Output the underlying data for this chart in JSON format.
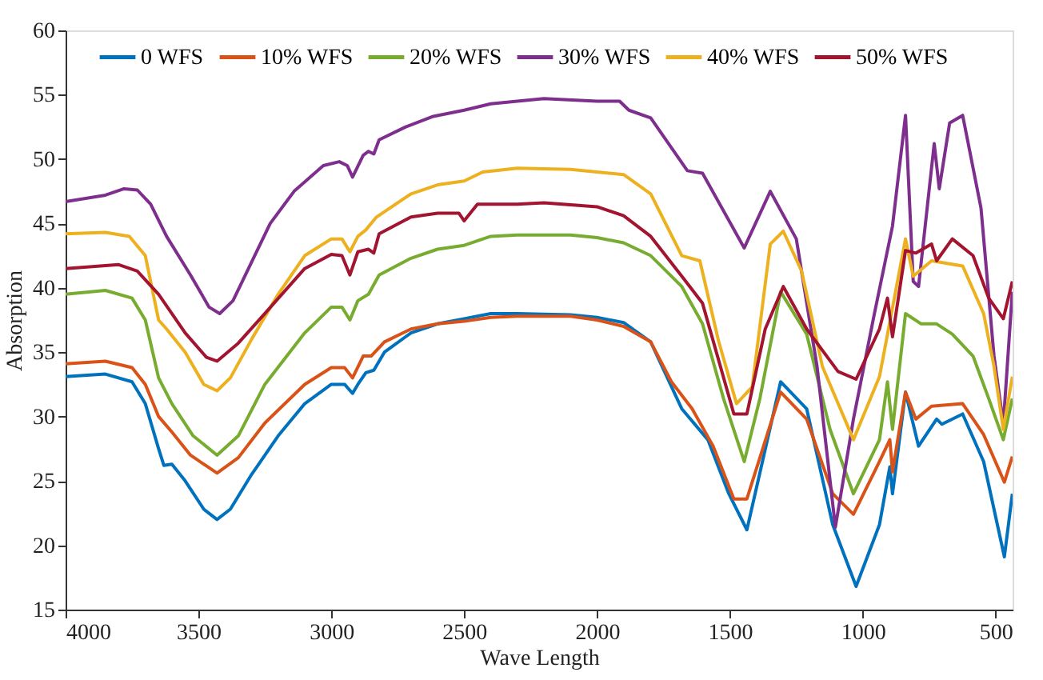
{
  "chart_data": {
    "type": "line",
    "xlabel": "Wave Length",
    "ylabel": "Absorption",
    "xlim": [
      4000,
      436
    ],
    "xticks": [
      4000,
      3500,
      3000,
      2500,
      2000,
      1500,
      1000,
      500
    ],
    "ylim": [
      15,
      60
    ],
    "yticks": [
      15,
      20,
      25,
      30,
      35,
      40,
      45,
      50,
      55,
      60
    ],
    "grid": false,
    "legend": "top",
    "marker": "none",
    "line_style": "solid",
    "series": [
      {
        "name": "0 WFS",
        "color": "#0072bd",
        "x": [
          4000,
          3850,
          3750,
          3700,
          3650,
          3630,
          3600,
          3550,
          3480,
          3430,
          3380,
          3300,
          3200,
          3100,
          3000,
          2950,
          2920,
          2900,
          2870,
          2840,
          2800,
          2700,
          2600,
          2500,
          2400,
          2300,
          2100,
          2000,
          1900,
          1798,
          1681,
          1583,
          1504,
          1436,
          1309,
          1211,
          1113,
          1025,
          937,
          898,
          888,
          839,
          790,
          722,
          702,
          624,
          545,
          467,
          437
        ],
        "values": [
          33.1,
          33.3,
          32.7,
          31,
          27.5,
          26.2,
          26.3,
          25,
          22.8,
          22,
          22.8,
          25.5,
          28.5,
          31,
          32.5,
          32.5,
          31.8,
          32.5,
          33.4,
          33.6,
          35,
          36.5,
          37.2,
          37.6,
          38,
          38,
          37.9,
          37.7,
          37.3,
          35.8,
          30.6,
          28.2,
          24,
          21.2,
          32.7,
          30.6,
          21.6,
          16.8,
          21.6,
          26.1,
          24,
          31.9,
          27.7,
          29.8,
          29.4,
          30.2,
          26.5,
          19.1,
          24
        ]
      },
      {
        "name": "10% WFS",
        "color": "#d95319",
        "x": [
          4000,
          3850,
          3750,
          3700,
          3650,
          3600,
          3530,
          3430,
          3350,
          3250,
          3100,
          3000,
          2950,
          2920,
          2880,
          2850,
          2800,
          2700,
          2600,
          2500,
          2400,
          2300,
          2100,
          2000,
          1900,
          1798,
          1720,
          1642,
          1563,
          1485,
          1436,
          1309,
          1211,
          1113,
          1035,
          937,
          898,
          888,
          839,
          800,
          741,
          624,
          545,
          467,
          437
        ],
        "values": [
          34.1,
          34.3,
          33.8,
          32.5,
          30,
          28.8,
          27,
          25.6,
          26.8,
          29.5,
          32.5,
          33.8,
          33.8,
          33,
          34.7,
          34.7,
          35.8,
          36.8,
          37.2,
          37.4,
          37.7,
          37.8,
          37.8,
          37.5,
          37,
          35.8,
          32.7,
          30.6,
          27.7,
          23.6,
          23.6,
          31.9,
          29.8,
          24,
          22.4,
          26.5,
          28.2,
          25.7,
          31.9,
          29.8,
          30.8,
          31,
          28.6,
          24.9,
          26.9
        ]
      },
      {
        "name": "20% WFS",
        "color": "#77ac30",
        "x": [
          4000,
          3850,
          3750,
          3700,
          3650,
          3600,
          3520,
          3430,
          3350,
          3250,
          3100,
          3000,
          2960,
          2930,
          2900,
          2860,
          2820,
          2700,
          2600,
          2500,
          2400,
          2300,
          2100,
          2000,
          1900,
          1798,
          1681,
          1603,
          1524,
          1446,
          1387,
          1309,
          1211,
          1123,
          1035,
          937,
          907,
          888,
          839,
          780,
          722,
          663,
          585,
          526,
          471,
          437
        ],
        "values": [
          39.5,
          39.8,
          39.2,
          37.5,
          33,
          31,
          28.5,
          27,
          28.5,
          32.5,
          36.5,
          38.5,
          38.5,
          37.5,
          39,
          39.5,
          41,
          42.3,
          43,
          43.3,
          44,
          44.1,
          44.1,
          43.9,
          43.5,
          42.5,
          40.1,
          37.2,
          31.4,
          26.5,
          31.4,
          39.7,
          36.4,
          29,
          24,
          28.2,
          32.7,
          29,
          38,
          37.2,
          37.2,
          36.4,
          34.7,
          31.4,
          28.2,
          31.4
        ]
      },
      {
        "name": "30% WFS",
        "color": "#7e2f8e",
        "x": [
          4000,
          3850,
          3780,
          3730,
          3680,
          3620,
          3530,
          3460,
          3420,
          3370,
          3300,
          3230,
          3140,
          3030,
          2970,
          2940,
          2920,
          2880,
          2860,
          2840,
          2820,
          2720,
          2620,
          2500,
          2400,
          2300,
          2200,
          2000,
          1915,
          1880,
          1798,
          1660,
          1603,
          1446,
          1348,
          1250,
          1172,
          1103,
          1035,
          956,
          888,
          839,
          810,
          790,
          731,
          712,
          673,
          624,
          555,
          506,
          471,
          437
        ],
        "values": [
          46.7,
          47.2,
          47.7,
          47.6,
          46.5,
          44,
          41,
          38.5,
          38,
          39,
          42,
          45,
          47.5,
          49.5,
          49.8,
          49.5,
          48.6,
          50.3,
          50.6,
          50.4,
          51.5,
          52.5,
          53.3,
          53.8,
          54.3,
          54.5,
          54.7,
          54.5,
          54.5,
          53.8,
          53.2,
          49.1,
          48.9,
          43.1,
          47.5,
          43.8,
          33.9,
          21.4,
          29.8,
          38,
          44.8,
          53.4,
          40.5,
          40.1,
          51.2,
          47.7,
          52.8,
          53.4,
          46.2,
          34.7,
          29.4,
          39.7
        ]
      },
      {
        "name": "40% WFS",
        "color": "#edb120",
        "x": [
          4000,
          3850,
          3760,
          3700,
          3650,
          3620,
          3550,
          3480,
          3430,
          3380,
          3300,
          3200,
          3100,
          3000,
          2960,
          2930,
          2900,
          2870,
          2830,
          2700,
          2600,
          2500,
          2430,
          2300,
          2100,
          2000,
          1900,
          1798,
          1681,
          1613,
          1543,
          1475,
          1416,
          1348,
          1299,
          1230,
          1152,
          1035,
          937,
          839,
          810,
          741,
          624,
          545,
          506,
          471,
          437
        ],
        "values": [
          44.2,
          44.3,
          44,
          42.5,
          37.5,
          36.8,
          35,
          32.5,
          32,
          33,
          36,
          39.5,
          42.5,
          43.8,
          43.8,
          42.8,
          44,
          44.5,
          45.5,
          47.3,
          48,
          48.3,
          49,
          49.3,
          49.2,
          49,
          48.8,
          47.3,
          42.5,
          42.1,
          35.9,
          31,
          32.3,
          43.4,
          44.4,
          41.3,
          33.9,
          28.2,
          33.1,
          43.8,
          40.9,
          42.1,
          41.7,
          38,
          33.9,
          29,
          33.1
        ]
      },
      {
        "name": "50% WFS",
        "color": "#a2142f",
        "x": [
          4000,
          3800,
          3730,
          3650,
          3550,
          3470,
          3430,
          3350,
          3250,
          3100,
          3000,
          2960,
          2930,
          2900,
          2860,
          2840,
          2820,
          2700,
          2600,
          2520,
          2500,
          2450,
          2300,
          2200,
          2000,
          1900,
          1798,
          1681,
          1603,
          1485,
          1436,
          1367,
          1299,
          1211,
          1093,
          1025,
          937,
          907,
          888,
          839,
          800,
          741,
          722,
          663,
          585,
          526,
          471,
          437
        ],
        "values": [
          41.5,
          41.8,
          41.3,
          39.5,
          36.5,
          34.6,
          34.3,
          35.7,
          38,
          41.5,
          42.6,
          42.5,
          41,
          42.8,
          43,
          42.7,
          44.2,
          45.5,
          45.8,
          45.8,
          45.2,
          46.5,
          46.5,
          46.6,
          46.3,
          45.6,
          44,
          40.9,
          38.8,
          30.2,
          30.2,
          36.8,
          40.1,
          36.8,
          33.5,
          32.9,
          36.8,
          39.2,
          36.2,
          42.9,
          42.7,
          43.4,
          42.1,
          43.8,
          42.5,
          39.2,
          37.6,
          40.5
        ]
      }
    ]
  }
}
